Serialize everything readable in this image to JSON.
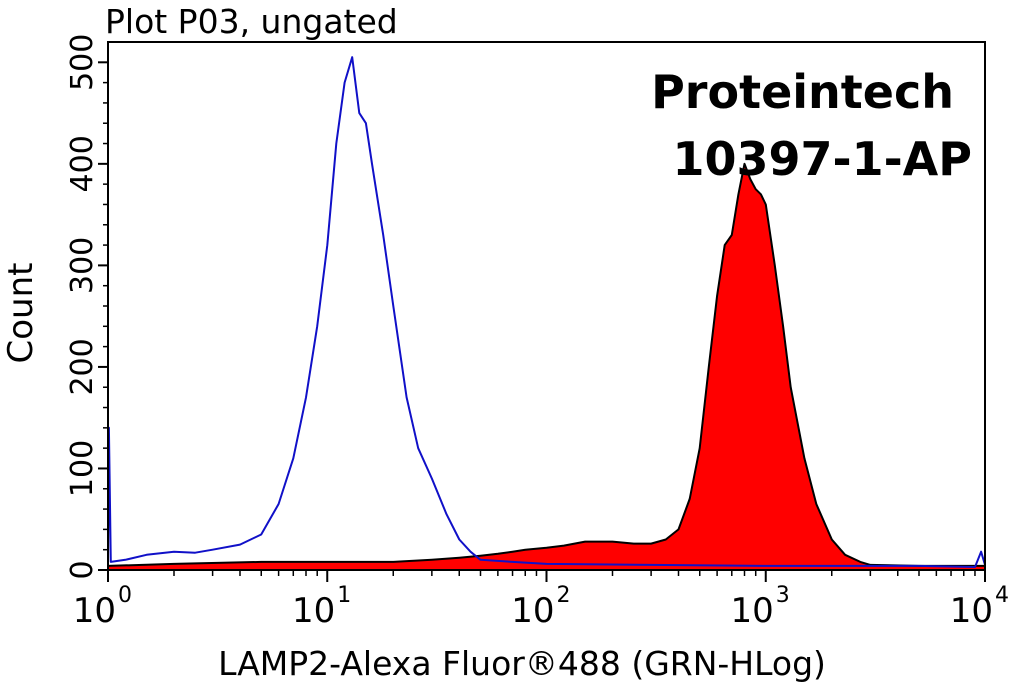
{
  "chart_data": {
    "type": "area",
    "title": "Plot P03, ungated",
    "xlabel": "LAMP2-Alexa Fluor®488 (GRN-HLog)",
    "ylabel": "Count",
    "xscale": "log",
    "xlim": [
      1,
      10000
    ],
    "ylim": [
      0,
      520
    ],
    "x_ticks": [
      {
        "base": "10",
        "exp": "0"
      },
      {
        "base": "10",
        "exp": "1"
      },
      {
        "base": "10",
        "exp": "2"
      },
      {
        "base": "10",
        "exp": "3"
      },
      {
        "base": "10",
        "exp": "4"
      }
    ],
    "y_ticks": [
      "0",
      "100",
      "200",
      "300",
      "400",
      "500"
    ],
    "annotations": [
      "Proteintech",
      "10397-1-AP"
    ],
    "series": [
      {
        "color": "#1010c8",
        "fill": "none",
        "points": [
          [
            1,
            5
          ],
          [
            1.01,
            140
          ],
          [
            1.03,
            8
          ],
          [
            1.2,
            10
          ],
          [
            1.5,
            15
          ],
          [
            2,
            18
          ],
          [
            2.5,
            17
          ],
          [
            3,
            20
          ],
          [
            4,
            25
          ],
          [
            5,
            35
          ],
          [
            6,
            65
          ],
          [
            7,
            110
          ],
          [
            8,
            170
          ],
          [
            9,
            240
          ],
          [
            10,
            320
          ],
          [
            11,
            420
          ],
          [
            12,
            480
          ],
          [
            13,
            505
          ],
          [
            14,
            450
          ],
          [
            15,
            440
          ],
          [
            16,
            400
          ],
          [
            18,
            330
          ],
          [
            20,
            260
          ],
          [
            23,
            170
          ],
          [
            26,
            120
          ],
          [
            30,
            90
          ],
          [
            35,
            55
          ],
          [
            40,
            30
          ],
          [
            45,
            18
          ],
          [
            50,
            10
          ],
          [
            70,
            8
          ],
          [
            100,
            6
          ],
          [
            300,
            5
          ],
          [
            1000,
            4
          ],
          [
            5000,
            4
          ],
          [
            9000,
            3
          ],
          [
            9600,
            18
          ],
          [
            10000,
            5
          ]
        ]
      },
      {
        "color": "#000000",
        "fill": "#ff0000",
        "points": [
          [
            1,
            4
          ],
          [
            2,
            6
          ],
          [
            5,
            8
          ],
          [
            10,
            8
          ],
          [
            20,
            8
          ],
          [
            30,
            10
          ],
          [
            40,
            12
          ],
          [
            50,
            14
          ],
          [
            60,
            16
          ],
          [
            70,
            18
          ],
          [
            80,
            20
          ],
          [
            100,
            22
          ],
          [
            120,
            24
          ],
          [
            150,
            28
          ],
          [
            200,
            28
          ],
          [
            250,
            26
          ],
          [
            300,
            26
          ],
          [
            350,
            30
          ],
          [
            400,
            40
          ],
          [
            450,
            70
          ],
          [
            500,
            120
          ],
          [
            550,
            200
          ],
          [
            600,
            270
          ],
          [
            650,
            320
          ],
          [
            700,
            330
          ],
          [
            750,
            370
          ],
          [
            800,
            400
          ],
          [
            850,
            385
          ],
          [
            900,
            375
          ],
          [
            950,
            370
          ],
          [
            1000,
            360
          ],
          [
            1100,
            300
          ],
          [
            1200,
            240
          ],
          [
            1300,
            180
          ],
          [
            1500,
            110
          ],
          [
            1700,
            65
          ],
          [
            2000,
            30
          ],
          [
            2300,
            15
          ],
          [
            2700,
            8
          ],
          [
            3000,
            5
          ],
          [
            5000,
            4
          ],
          [
            10000,
            4
          ]
        ]
      }
    ]
  }
}
